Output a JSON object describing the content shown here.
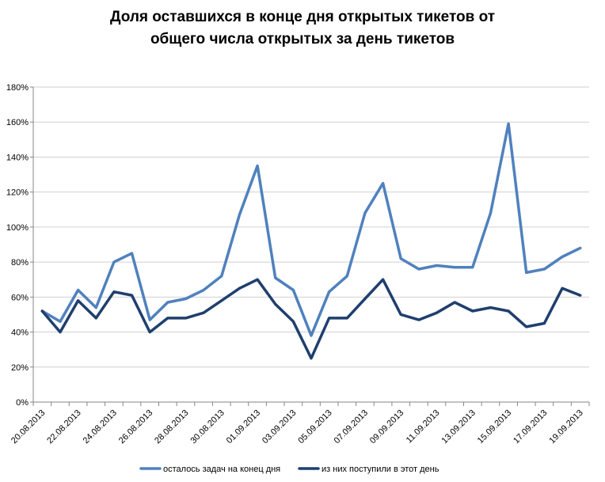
{
  "chart_data": {
    "type": "line",
    "title": "Доля оставшихся в конце дня открытых  тикетов от\nобщего числа открытых за день тикетов",
    "ylim": [
      0,
      180
    ],
    "yticks": [
      "0%",
      "20%",
      "40%",
      "60%",
      "80%",
      "100%",
      "120%",
      "140%",
      "160%",
      "180%"
    ],
    "x_labels": [
      "20.08.2013",
      "22.08.2013",
      "24.08.2013",
      "26.08.2013",
      "28.08.2013",
      "30.08.2013",
      "01.09.2013",
      "03.09.2013",
      "05.09.2013",
      "07.09.2013",
      "09.09.2013",
      "11.09.2013",
      "13.09.2013",
      "15.09.2013",
      "17.09.2013",
      "19.09.2013"
    ],
    "grid": "horizontal",
    "legend_position": "bottom",
    "series": [
      {
        "name": "осталось задач на конец дня",
        "color": "#4f81bd",
        "values": [
          52,
          46,
          64,
          54,
          80,
          85,
          47,
          57,
          59,
          64,
          72,
          107,
          135,
          71,
          64,
          38,
          63,
          72,
          108,
          125,
          82,
          76,
          78,
          77,
          77,
          108,
          159,
          74,
          76,
          83,
          88
        ]
      },
      {
        "name": "из них поступили в этот день",
        "color": "#1f3f6e",
        "values": [
          52,
          40,
          58,
          48,
          63,
          61,
          40,
          48,
          48,
          51,
          58,
          65,
          70,
          56,
          46,
          25,
          48,
          48,
          59,
          70,
          50,
          47,
          51,
          57,
          52,
          54,
          52,
          43,
          45,
          65,
          61
        ]
      }
    ]
  }
}
